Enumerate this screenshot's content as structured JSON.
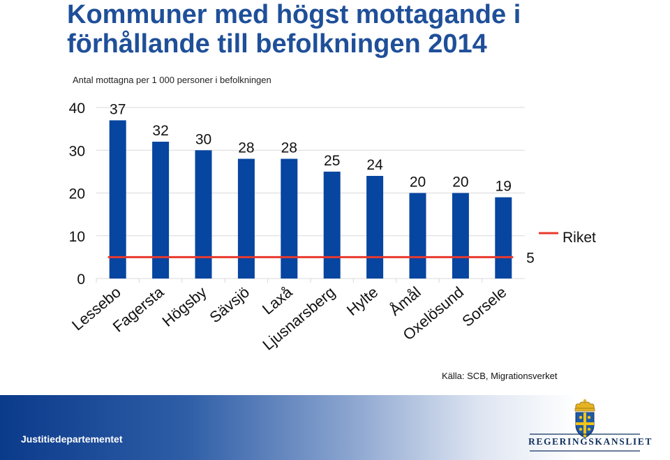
{
  "header": {
    "title": "Kommuner med högst mottagande i förhållande till befolkningen 2014",
    "subtitle": "Antal mottagna per 1 000 personer i befolkningen"
  },
  "chart_data": {
    "type": "bar",
    "categories": [
      "Lessebo",
      "Fagersta",
      "Högsby",
      "Sävsjö",
      "Laxå",
      "Ljusnarsberg",
      "Hylte",
      "Åmål",
      "Oxelösund",
      "Sorsele"
    ],
    "values": [
      37,
      32,
      30,
      28,
      28,
      25,
      24,
      20,
      20,
      19
    ],
    "value_labels": [
      "37",
      "32",
      "30",
      "28",
      "28",
      "25",
      "24",
      "20",
      "20",
      "19"
    ],
    "yticks": [
      "0",
      "10",
      "20",
      "30",
      "40"
    ],
    "ylim": [
      0,
      40
    ],
    "grid": true,
    "reference_line": {
      "name": "Riket",
      "value": 5,
      "label": "5"
    },
    "colors": {
      "bar": "#0645a0",
      "reference": "#e8382d",
      "grid": "#d9d9d9"
    }
  },
  "source": "Källa: SCB, Migrationsverket",
  "footer": {
    "department": "Justitiedepartementet",
    "logo_text": "REGERINGSKANSLIET"
  }
}
